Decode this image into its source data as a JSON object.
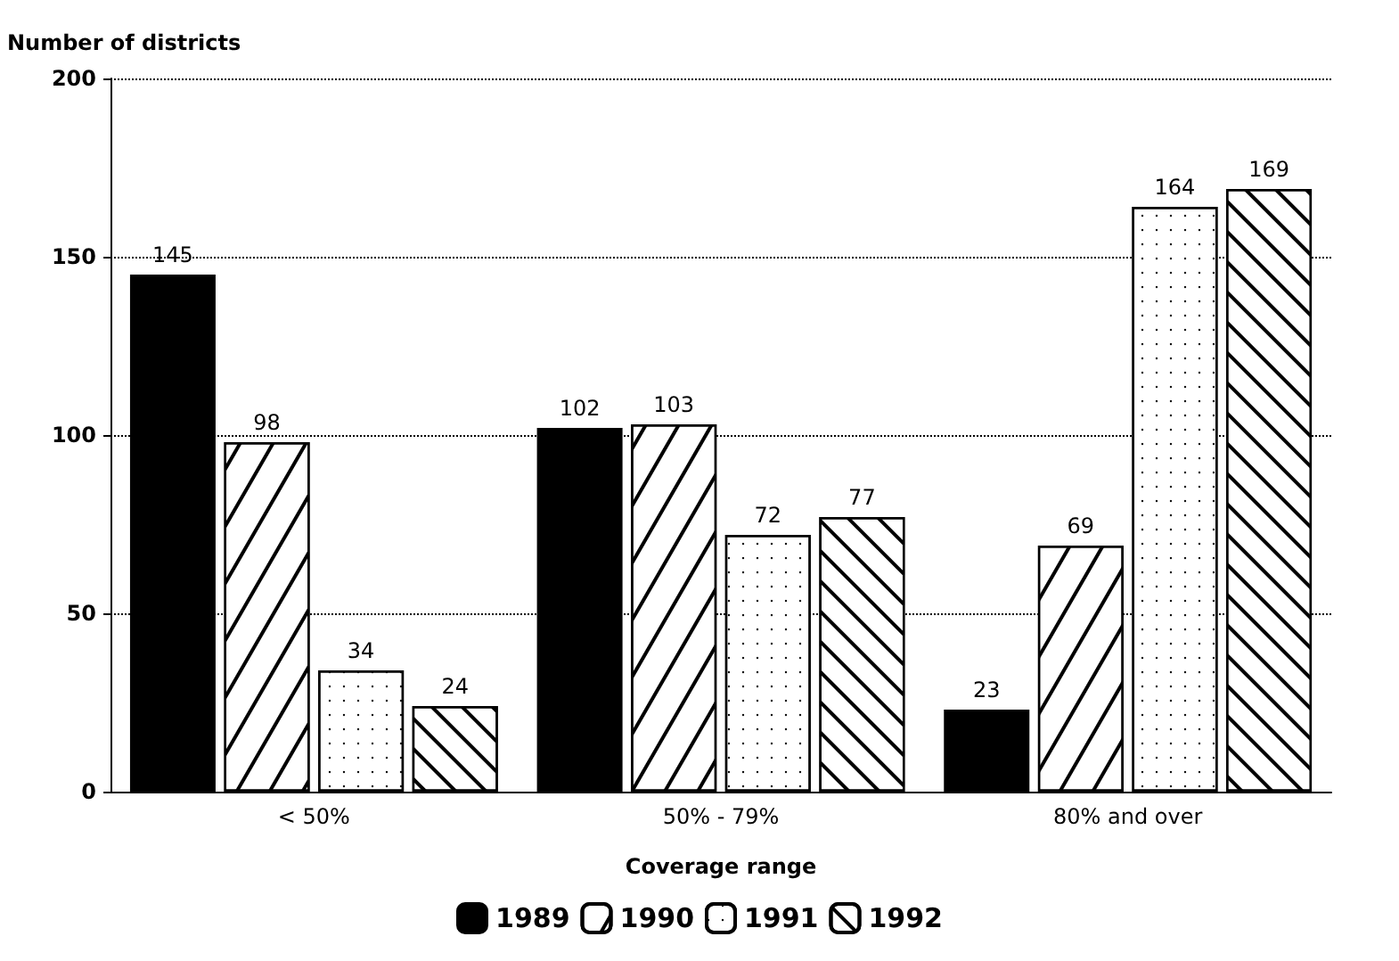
{
  "chart_data": {
    "type": "bar",
    "xlabel": "Coverage range",
    "ylabel": "Number of districts",
    "categories": [
      "< 50%",
      "50% - 79%",
      "80% and over"
    ],
    "series": [
      {
        "name": "1989",
        "color": "#000000",
        "values": [
          145,
          102,
          23
        ]
      },
      {
        "name": "1990",
        "color": "#ffffff",
        "values": [
          98,
          103,
          69
        ]
      },
      {
        "name": "1991",
        "color": "#ffffff",
        "values": [
          34,
          72,
          164
        ]
      },
      {
        "name": "1992",
        "color": "#ffffff",
        "values": [
          24,
          77,
          169
        ]
      }
    ],
    "ylim": [
      0,
      200
    ],
    "yticks": [
      0,
      50,
      100,
      150,
      200
    ],
    "grid": "y",
    "data_labels": true,
    "legend": "bottom"
  }
}
